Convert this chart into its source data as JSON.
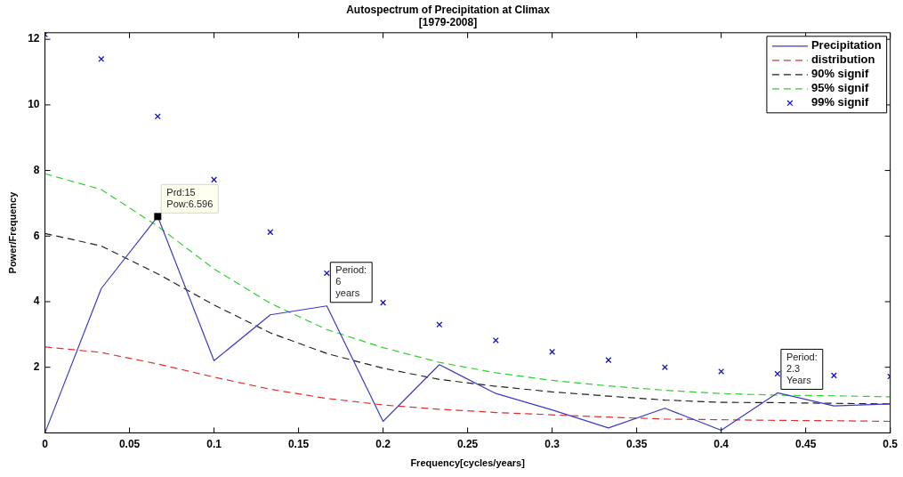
{
  "chart_data": {
    "type": "line",
    "title": "Autospectrum of Precipitation at Climax",
    "subtitle": "[1979-2008]",
    "xlabel": "Frequency[cycles/years]",
    "ylabel": "Power/Frequency",
    "x": [
      0,
      0.0333,
      0.0667,
      0.1,
      0.1333,
      0.1667,
      0.2,
      0.2333,
      0.2667,
      0.3,
      0.3333,
      0.3667,
      0.4,
      0.4333,
      0.4667,
      0.5
    ],
    "series": [
      {
        "name": "Precipitation",
        "color": "#3b3bc8",
        "line_style": "solid",
        "values": [
          0,
          4.4,
          6.596,
          2.2,
          3.6,
          3.87,
          0.35,
          2.08,
          1.2,
          0.7,
          0.15,
          0.75,
          0.08,
          1.22,
          0.82,
          0.88
        ]
      },
      {
        "name": "distribution",
        "color": "#e03030",
        "line_style": "dashed",
        "values": [
          2.62,
          2.45,
          2.1,
          1.7,
          1.33,
          1.05,
          0.85,
          0.72,
          0.62,
          0.55,
          0.48,
          0.42,
          0.4,
          0.38,
          0.37,
          0.35
        ]
      },
      {
        "name": "90% signif",
        "color": "#202020",
        "line_style": "dashed",
        "values": [
          6.08,
          5.7,
          4.85,
          3.9,
          3.05,
          2.42,
          1.97,
          1.63,
          1.42,
          1.25,
          1.12,
          1.0,
          0.93,
          0.92,
          0.9,
          0.88
        ]
      },
      {
        "name": "95% signif",
        "color": "#30d030",
        "line_style": "dashed",
        "values": [
          7.9,
          7.42,
          6.3,
          5.0,
          3.95,
          3.15,
          2.6,
          2.15,
          1.83,
          1.6,
          1.43,
          1.3,
          1.2,
          1.15,
          1.13,
          1.1
        ]
      },
      {
        "name": "99% signif",
        "color": "#1010d0",
        "type": "scatter",
        "marker": "cross",
        "values": [
          12.15,
          11.4,
          9.65,
          7.72,
          6.12,
          4.87,
          3.97,
          3.3,
          2.82,
          2.47,
          2.22,
          2.0,
          1.87,
          1.8,
          1.75,
          1.72
        ]
      }
    ],
    "xlim": [
      0,
      0.5
    ],
    "xticks": [
      0,
      0.05,
      0.1,
      0.15,
      0.2,
      0.25,
      0.3,
      0.35,
      0.4,
      0.45,
      0.5
    ],
    "ylim": [
      0,
      12.2
    ],
    "yticks": [
      2,
      4,
      6,
      8,
      10,
      12
    ],
    "grid": false,
    "legend": "top right",
    "annotations": [
      {
        "text": "Prd:15\nPow:6.596",
        "x": 0.0667,
        "y": 6.596
      },
      {
        "text": "Period:\n6\nyears",
        "x": 0.1667,
        "y": 3.87
      },
      {
        "text": "Period:\n2.3\nYears",
        "x": 0.4333,
        "y": 1.22
      }
    ]
  }
}
